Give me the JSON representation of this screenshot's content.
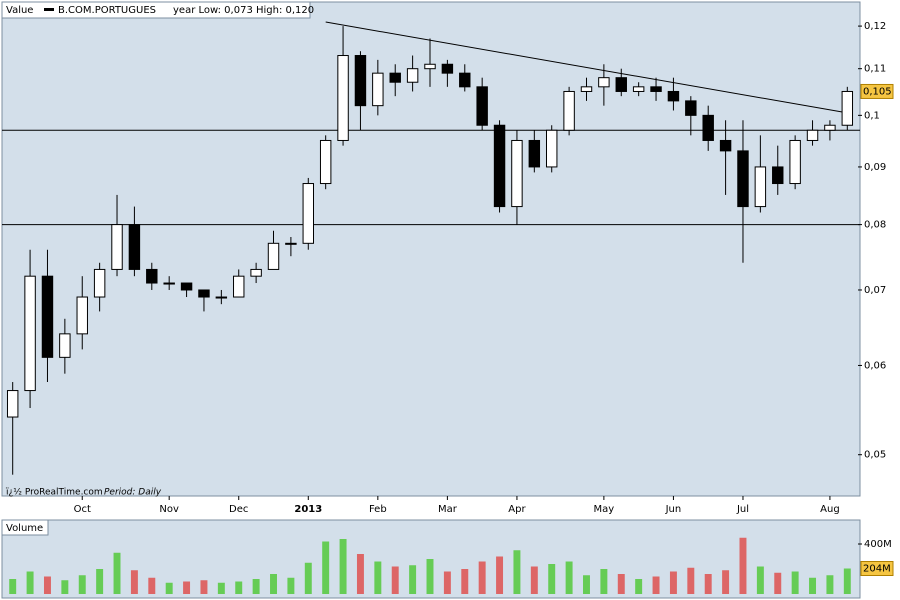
{
  "chart_data": {
    "type": "candlestick",
    "header": {
      "label": "Value",
      "symbol": "B.COM.PORTUGUES",
      "range_note": "year Low: 0,073 High: 0,120"
    },
    "source": "ï¿½ ProRealTime.com",
    "period": "Period: Daily",
    "log_scale": true,
    "ylim": [
      0.047,
      0.122
    ],
    "yticks": [
      {
        "value": 0.05,
        "label": "0,05"
      },
      {
        "value": 0.06,
        "label": "0,06"
      },
      {
        "value": 0.07,
        "label": "0,07"
      },
      {
        "value": 0.08,
        "label": "0,08"
      },
      {
        "value": 0.09,
        "label": "0,09"
      },
      {
        "value": 0.1,
        "label": "0,1"
      },
      {
        "value": 0.11,
        "label": "0,11"
      },
      {
        "value": 0.12,
        "label": "0,12"
      }
    ],
    "last_price": {
      "value": 0.105,
      "label": "0,105"
    },
    "up_color": "#ffffff",
    "down_color": "#000000",
    "levels": [
      0.097,
      0.08
    ],
    "trendline": {
      "start": {
        "index": 18,
        "value": 0.121
      },
      "end": {
        "index": 48,
        "value": 0.1005
      }
    },
    "categories": [
      null,
      null,
      null,
      null,
      "Oct",
      null,
      null,
      null,
      null,
      "Nov",
      null,
      null,
      null,
      "Dec",
      null,
      null,
      null,
      "2013",
      null,
      null,
      null,
      "Feb",
      null,
      null,
      null,
      "Mar",
      null,
      null,
      null,
      "Apr",
      null,
      null,
      null,
      null,
      "May",
      null,
      null,
      null,
      "Jun",
      null,
      null,
      null,
      "Jul",
      null,
      null,
      null,
      null,
      "Aug",
      null
    ],
    "open": [
      0.054,
      0.057,
      0.072,
      0.061,
      0.064,
      0.069,
      0.073,
      0.08,
      0.073,
      0.071,
      0.071,
      0.07,
      0.069,
      0.069,
      0.072,
      0.073,
      0.077,
      0.077,
      0.087,
      0.095,
      0.113,
      0.102,
      0.109,
      0.107,
      0.11,
      0.111,
      0.109,
      0.106,
      0.098,
      0.083,
      0.095,
      0.09,
      0.097,
      0.105,
      0.106,
      0.108,
      0.105,
      0.106,
      0.105,
      0.103,
      0.1,
      0.095,
      0.093,
      0.083,
      0.09,
      0.087,
      0.095,
      0.097,
      0.098
    ],
    "high": [
      0.058,
      0.076,
      0.076,
      0.066,
      0.072,
      0.074,
      0.085,
      0.083,
      0.074,
      0.072,
      0.071,
      0.07,
      0.07,
      0.073,
      0.074,
      0.079,
      0.078,
      0.088,
      0.096,
      0.12,
      0.114,
      0.112,
      0.111,
      0.113,
      0.117,
      0.112,
      0.111,
      0.108,
      0.099,
      0.097,
      0.097,
      0.098,
      0.106,
      0.108,
      0.111,
      0.11,
      0.107,
      0.108,
      0.108,
      0.104,
      0.102,
      0.099,
      0.099,
      0.096,
      0.094,
      0.096,
      0.099,
      0.099,
      0.106
    ],
    "low": [
      0.048,
      0.055,
      0.058,
      0.059,
      0.062,
      0.067,
      0.072,
      0.072,
      0.07,
      0.07,
      0.069,
      0.067,
      0.068,
      0.069,
      0.071,
      0.073,
      0.075,
      0.076,
      0.086,
      0.094,
      0.097,
      0.1,
      0.104,
      0.105,
      0.106,
      0.106,
      0.105,
      0.097,
      0.082,
      0.08,
      0.089,
      0.089,
      0.096,
      0.103,
      0.102,
      0.104,
      0.104,
      0.103,
      0.101,
      0.096,
      0.093,
      0.085,
      0.074,
      0.082,
      0.085,
      0.086,
      0.094,
      0.095,
      0.097
    ],
    "close": [
      0.057,
      0.072,
      0.061,
      0.064,
      0.069,
      0.073,
      0.08,
      0.073,
      0.071,
      0.071,
      0.07,
      0.069,
      0.069,
      0.072,
      0.073,
      0.077,
      0.077,
      0.087,
      0.095,
      0.113,
      0.102,
      0.109,
      0.107,
      0.11,
      0.111,
      0.109,
      0.106,
      0.098,
      0.083,
      0.095,
      0.09,
      0.097,
      0.105,
      0.106,
      0.108,
      0.105,
      0.106,
      0.105,
      0.103,
      0.1,
      0.095,
      0.093,
      0.083,
      0.09,
      0.087,
      0.095,
      0.097,
      0.098,
      0.105
    ],
    "volume": {
      "title": "Volume",
      "ylim": [
        0,
        456
      ],
      "yticks": [
        {
          "value": 400,
          "label": "400M"
        }
      ],
      "last": {
        "value": 204,
        "label": "204M"
      },
      "up_color": "#66cc55",
      "down_color": "#dd6666",
      "values": [
        120,
        180,
        140,
        110,
        150,
        200,
        330,
        190,
        130,
        90,
        100,
        110,
        90,
        100,
        120,
        160,
        130,
        250,
        420,
        440,
        320,
        260,
        220,
        230,
        280,
        180,
        200,
        260,
        300,
        350,
        220,
        240,
        260,
        150,
        200,
        160,
        120,
        140,
        180,
        210,
        160,
        190,
        450,
        220,
        170,
        180,
        130,
        150,
        204
      ]
    }
  }
}
